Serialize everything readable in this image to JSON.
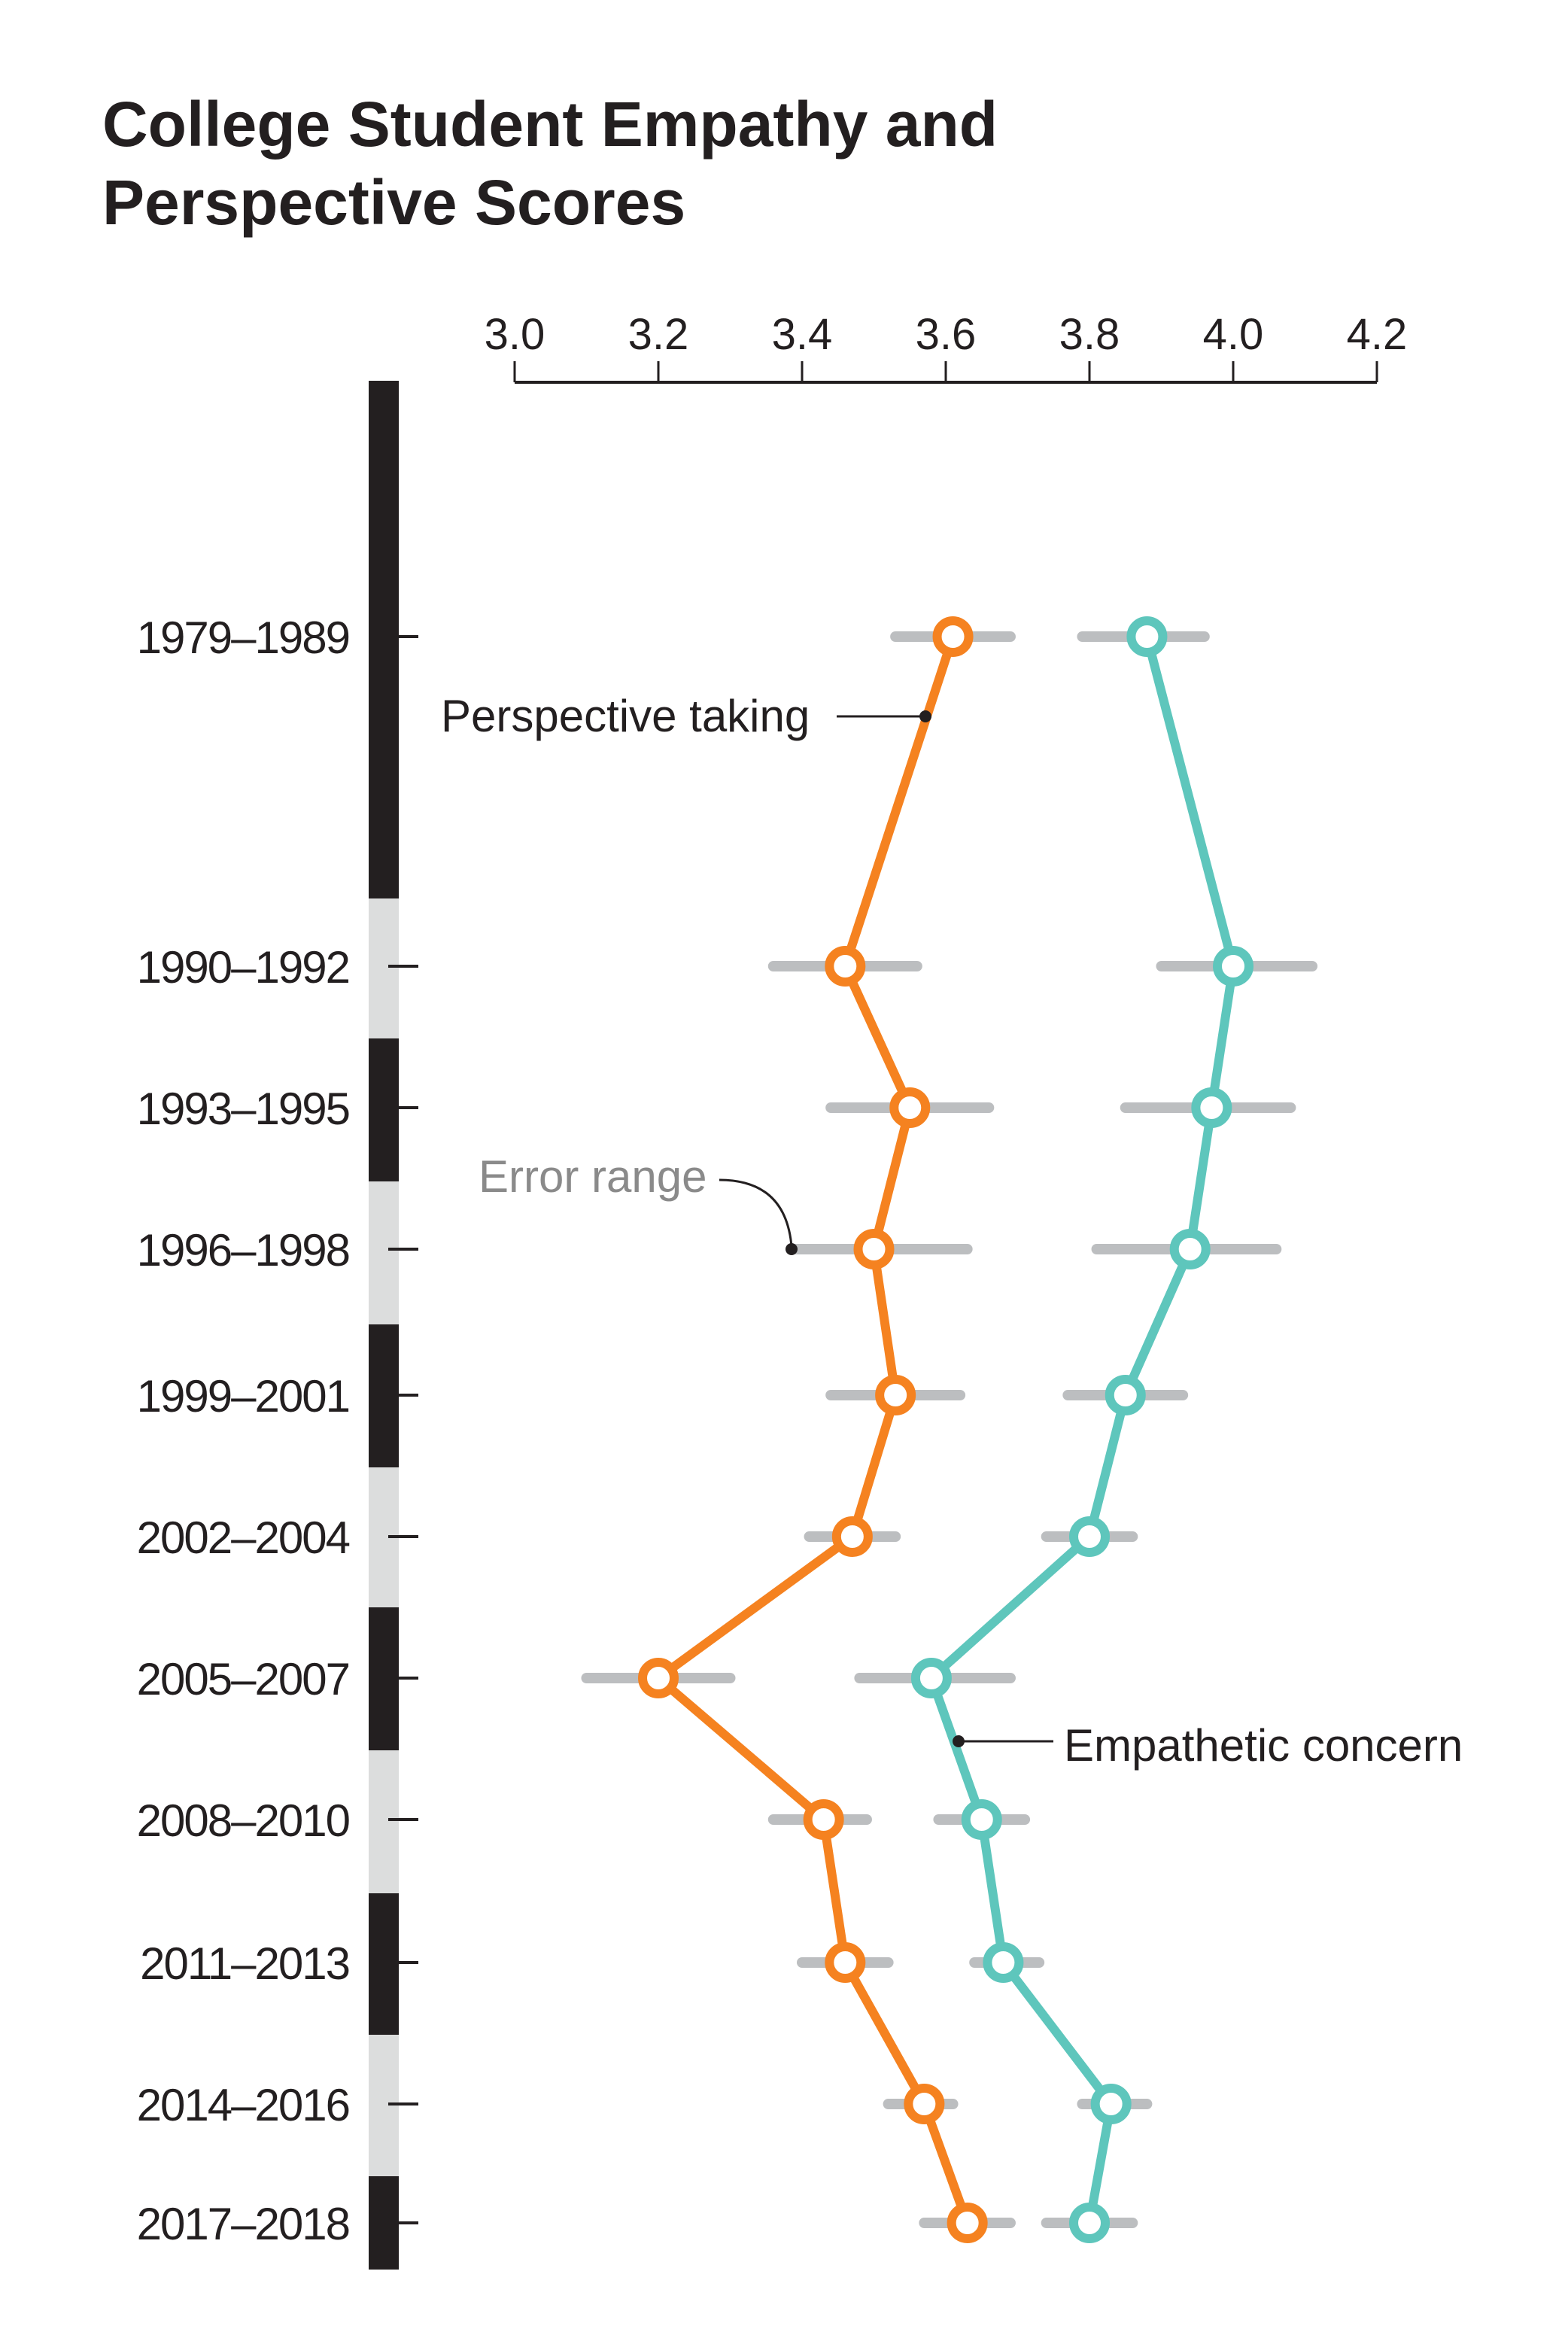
{
  "chart_data": {
    "type": "line",
    "title": "College Student Empathy and Perspective Scores",
    "title_lines": [
      "College Student Empathy and",
      "Perspective Scores"
    ],
    "xlim": [
      3.0,
      4.2
    ],
    "x_ticks": [
      "3.0",
      "3.2",
      "3.4",
      "3.6",
      "3.8",
      "4.0",
      "4.2"
    ],
    "x_axis_position": "top",
    "grid": false,
    "categories": [
      "1979–1989",
      "1990–1992",
      "1993–1995",
      "1996–1998",
      "1999–2001",
      "2002–2004",
      "2005–2007",
      "2008–2010",
      "2011–2013",
      "2014–2016",
      "2017–2018"
    ],
    "category_start_years": [
      1979,
      1990,
      1993,
      1996,
      1999,
      2002,
      2005,
      2008,
      2011,
      2014,
      2017
    ],
    "series": [
      {
        "name": "Perspective taking",
        "color": "#f58220",
        "values": [
          3.61,
          3.46,
          3.55,
          3.5,
          3.53,
          3.47,
          3.2,
          3.43,
          3.46,
          3.57,
          3.63
        ],
        "error_low": [
          3.53,
          3.36,
          3.44,
          3.39,
          3.44,
          3.41,
          3.1,
          3.36,
          3.4,
          3.52,
          3.57
        ],
        "error_high": [
          3.69,
          3.56,
          3.66,
          3.63,
          3.62,
          3.53,
          3.3,
          3.49,
          3.52,
          3.61,
          3.69
        ]
      },
      {
        "name": "Empathetic concern",
        "color": "#5ec6bc",
        "values": [
          3.88,
          4.0,
          3.97,
          3.94,
          3.85,
          3.8,
          3.58,
          3.65,
          3.68,
          3.83,
          3.8
        ],
        "error_low": [
          3.79,
          3.9,
          3.85,
          3.81,
          3.77,
          3.74,
          3.48,
          3.59,
          3.64,
          3.79,
          3.74
        ],
        "error_high": [
          3.96,
          4.11,
          4.08,
          4.06,
          3.93,
          3.86,
          3.69,
          3.71,
          3.73,
          3.88,
          3.86
        ]
      }
    ],
    "annotations": {
      "perspective": "Perspective taking",
      "error": "Error range",
      "empathy": "Empathetic concern"
    },
    "error_color": "#bcbec0",
    "timeline_colors": [
      "#231f20",
      "#dcdddd"
    ]
  }
}
